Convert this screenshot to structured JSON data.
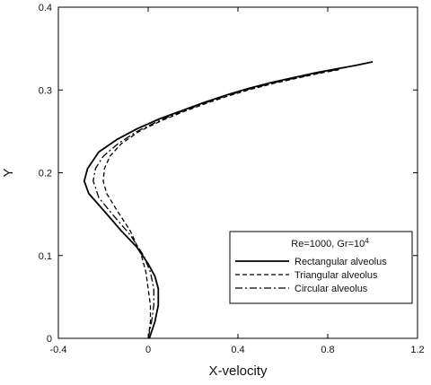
{
  "chart_data": {
    "type": "line",
    "xlabel": "X-velocity",
    "ylabel": "Y",
    "xlim": [
      -0.4,
      1.2
    ],
    "ylim": [
      0,
      0.4
    ],
    "xticks": [
      -0.4,
      0,
      0.4,
      0.8,
      1.2
    ],
    "xtick_labels": [
      "-0.4",
      "0",
      "0.4",
      "0.8",
      "1.2"
    ],
    "yticks": [
      0,
      0.1,
      0.2,
      0.3,
      0.4
    ],
    "ytick_labels": [
      "0",
      "0.1",
      "0.2",
      "0.3",
      "0.4"
    ],
    "grid": false,
    "legend": {
      "placement": "bottom-right",
      "title": "Re=1000, Gr=10",
      "title_sup": "4"
    },
    "series": [
      {
        "name": "Rectangular alveolus",
        "style": "solid",
        "color": "#000000",
        "points": [
          [
            0.005,
            0.0
          ],
          [
            0.03,
            0.02
          ],
          [
            0.045,
            0.04
          ],
          [
            0.045,
            0.06
          ],
          [
            0.03,
            0.075
          ],
          [
            0.0,
            0.09
          ],
          [
            -0.05,
            0.11
          ],
          [
            -0.12,
            0.13
          ],
          [
            -0.2,
            0.155
          ],
          [
            -0.265,
            0.175
          ],
          [
            -0.285,
            0.19
          ],
          [
            -0.27,
            0.205
          ],
          [
            -0.22,
            0.225
          ],
          [
            -0.14,
            0.24
          ],
          [
            -0.05,
            0.253
          ],
          [
            0.05,
            0.265
          ],
          [
            0.15,
            0.275
          ],
          [
            0.25,
            0.285
          ],
          [
            0.35,
            0.294
          ],
          [
            0.45,
            0.302
          ],
          [
            0.55,
            0.309
          ],
          [
            0.65,
            0.315
          ],
          [
            0.75,
            0.321
          ],
          [
            0.85,
            0.326
          ],
          [
            0.93,
            0.33
          ],
          [
            1.0,
            0.334
          ]
        ]
      },
      {
        "name": "Triangular alveolus",
        "style": "dashed",
        "color": "#000000",
        "points": [
          [
            0.0,
            0.0
          ],
          [
            0.01,
            0.02
          ],
          [
            0.01,
            0.04
          ],
          [
            0.0,
            0.06
          ],
          [
            -0.01,
            0.08
          ],
          [
            -0.03,
            0.1
          ],
          [
            -0.08,
            0.13
          ],
          [
            -0.14,
            0.155
          ],
          [
            -0.185,
            0.175
          ],
          [
            -0.2,
            0.19
          ],
          [
            -0.195,
            0.205
          ],
          [
            -0.17,
            0.22
          ],
          [
            -0.12,
            0.235
          ],
          [
            -0.04,
            0.25
          ],
          [
            0.06,
            0.263
          ],
          [
            0.16,
            0.274
          ],
          [
            0.26,
            0.284
          ],
          [
            0.36,
            0.293
          ],
          [
            0.46,
            0.301
          ],
          [
            0.56,
            0.308
          ],
          [
            0.66,
            0.314
          ],
          [
            0.76,
            0.32
          ],
          [
            0.86,
            0.325
          ]
        ]
      },
      {
        "name": "Circular alveolus",
        "style": "dashdot",
        "color": "#000000",
        "points": [
          [
            0.0,
            0.0
          ],
          [
            0.015,
            0.02
          ],
          [
            0.025,
            0.04
          ],
          [
            0.025,
            0.06
          ],
          [
            0.01,
            0.08
          ],
          [
            -0.02,
            0.1
          ],
          [
            -0.08,
            0.125
          ],
          [
            -0.16,
            0.15
          ],
          [
            -0.22,
            0.17
          ],
          [
            -0.245,
            0.19
          ],
          [
            -0.235,
            0.205
          ],
          [
            -0.2,
            0.22
          ],
          [
            -0.135,
            0.235
          ],
          [
            -0.05,
            0.25
          ],
          [
            0.05,
            0.263
          ],
          [
            0.15,
            0.274
          ],
          [
            0.25,
            0.284
          ],
          [
            0.35,
            0.293
          ],
          [
            0.45,
            0.301
          ],
          [
            0.55,
            0.308
          ],
          [
            0.65,
            0.314
          ],
          [
            0.75,
            0.32
          ],
          [
            0.85,
            0.325
          ]
        ]
      }
    ]
  }
}
